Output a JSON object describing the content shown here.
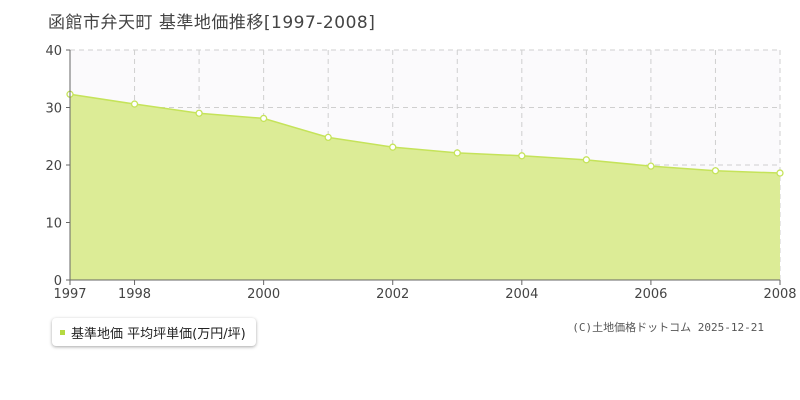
{
  "title": "函館市弁天町 基準地価推移[1997-2008]",
  "legend": {
    "label": "基準地価 平均坪単価(万円/坪)"
  },
  "copyright": "(C)土地価格ドットコム 2025-12-21",
  "colors": {
    "fill": "#dcec96",
    "line": "#c5e35a",
    "grid": "#cfcfcf",
    "plot_bg": "#fbfafc"
  },
  "chart_data": {
    "type": "area",
    "title": "函館市弁天町 基準地価推移[1997-2008]",
    "ylim": [
      0,
      40
    ],
    "xlim": [
      1997,
      2008
    ],
    "yticks": [
      0,
      10,
      20,
      30,
      40
    ],
    "xtick_labels": [
      1997,
      1998,
      2000,
      2002,
      2004,
      2006,
      2008
    ],
    "grid": true,
    "legend_position": "bottom-left",
    "series": [
      {
        "name": "基準地価 平均坪単価(万円/坪)",
        "x": [
          1997,
          1998,
          1999,
          2000,
          2001,
          2002,
          2003,
          2004,
          2005,
          2006,
          2007,
          2008
        ],
        "values": [
          32.3,
          30.6,
          29.0,
          28.1,
          24.8,
          23.1,
          22.1,
          21.6,
          20.9,
          19.8,
          19.0,
          18.6
        ]
      }
    ]
  }
}
